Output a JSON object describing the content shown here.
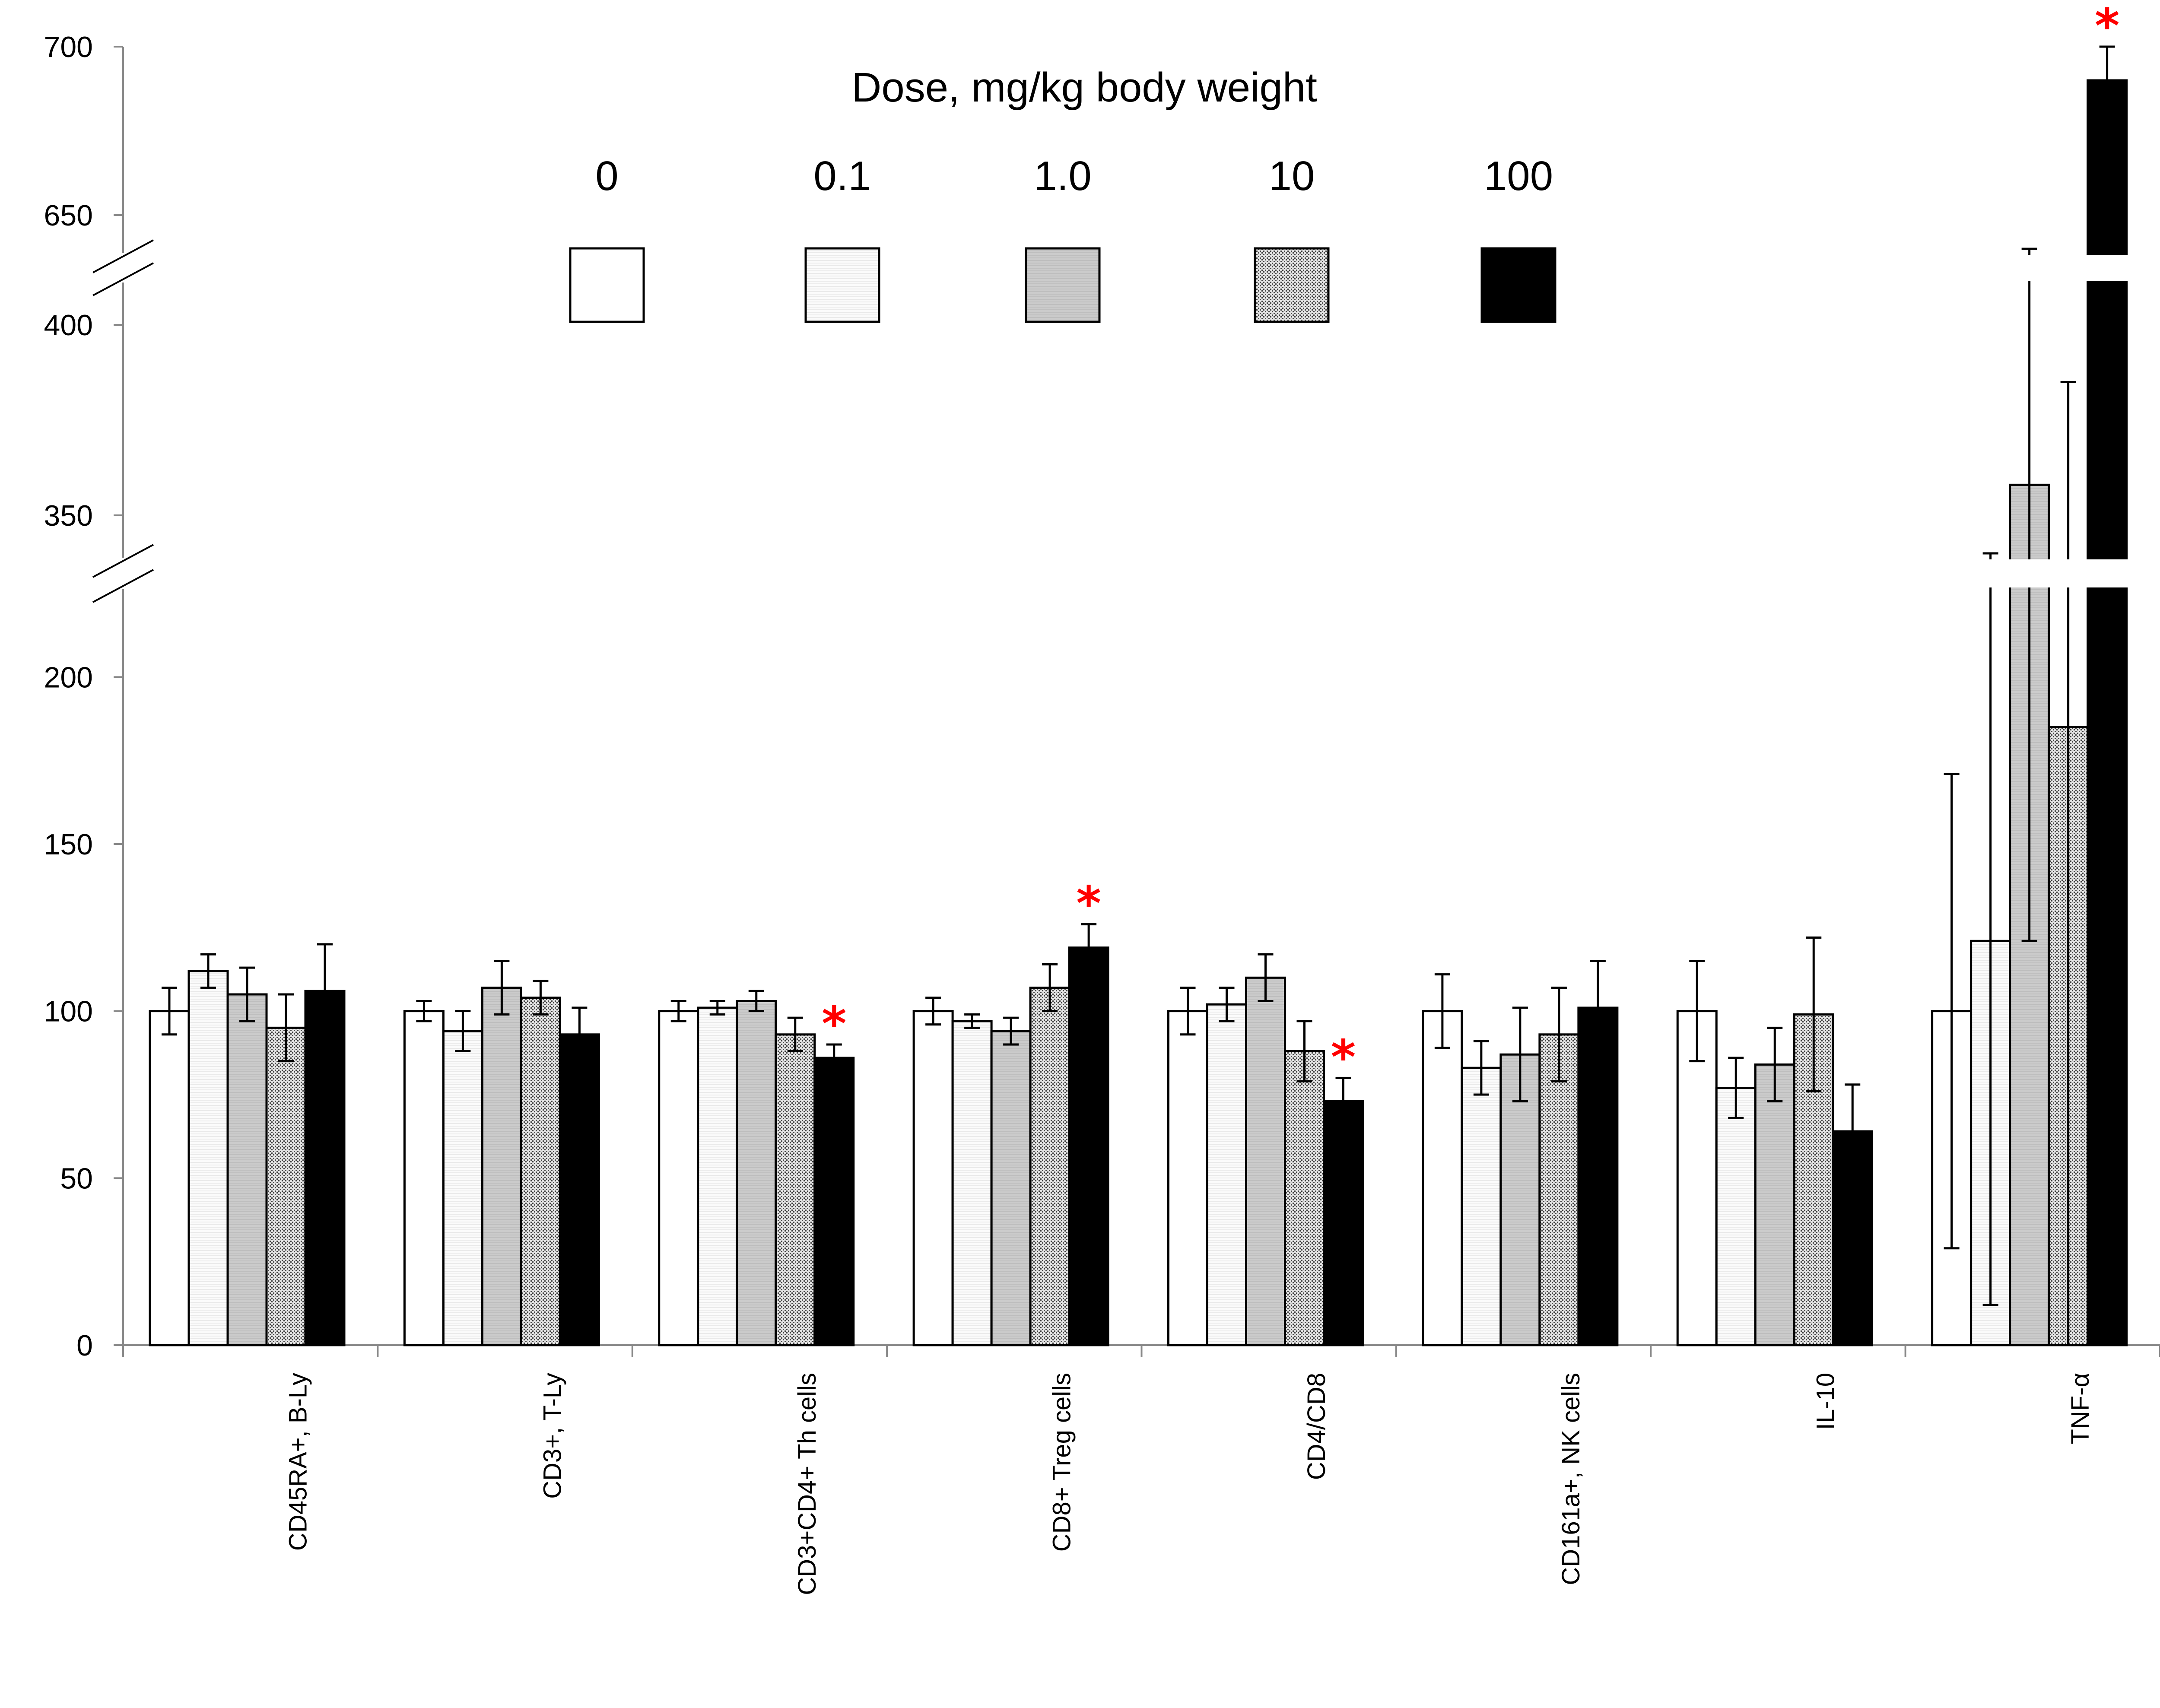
{
  "chart_data": {
    "type": "bar",
    "categories": [
      "CD45RA+, B-Ly",
      "CD3+, T-Ly",
      "CD3+CD4+ Th cells",
      "CD8+ Treg cells",
      "CD4/CD8",
      "CD161a+, NK cells",
      "IL-10",
      "TNF-α"
    ],
    "legend_title": "Dose, mg/kg body weight",
    "series": [
      {
        "name": "0",
        "pattern": "white",
        "values": [
          100,
          100,
          100,
          100,
          100,
          100,
          100,
          100
        ],
        "errors": [
          7,
          3,
          3,
          4,
          7,
          11,
          15,
          71
        ]
      },
      {
        "name": "0.1",
        "pattern": "light",
        "values": [
          112,
          94,
          101,
          97,
          102,
          83,
          77,
          121
        ],
        "errors": [
          5,
          6,
          2,
          2,
          5,
          8,
          9,
          109
        ]
      },
      {
        "name": "1.0",
        "pattern": "grey",
        "values": [
          105,
          107,
          103,
          94,
          110,
          87,
          84,
          358
        ],
        "errors": [
          8,
          8,
          3,
          4,
          7,
          14,
          11,
          237
        ]
      },
      {
        "name": "10",
        "pattern": "dotted",
        "values": [
          95,
          104,
          93,
          107,
          88,
          93,
          99,
          185
        ],
        "errors": [
          10,
          5,
          5,
          7,
          9,
          14,
          23,
          200
        ]
      },
      {
        "name": "100",
        "pattern": "black",
        "values": [
          106,
          93,
          86,
          119,
          73,
          101,
          64,
          690
        ],
        "errors": [
          14,
          8,
          4,
          7,
          7,
          14,
          14,
          270
        ]
      }
    ],
    "significant": [
      {
        "category": "CD3+CD4+ Th cells",
        "series": "100"
      },
      {
        "category": "CD8+ Treg cells",
        "series": "100"
      },
      {
        "category": "CD4/CD8",
        "series": "100"
      },
      {
        "category": "TNF-α",
        "series": "100"
      }
    ],
    "significance_marker": "*",
    "y_ticks": [
      0,
      50,
      100,
      150,
      200,
      350,
      400,
      650,
      700
    ],
    "y_axis_breaks": [
      [
        225,
        340
      ],
      [
        410,
        640
      ]
    ],
    "xlabel": "",
    "ylabel": "",
    "legend_position": "top-center",
    "colors": {
      "black": "#000000",
      "grey": "#808080",
      "star": "#ff0000"
    }
  }
}
